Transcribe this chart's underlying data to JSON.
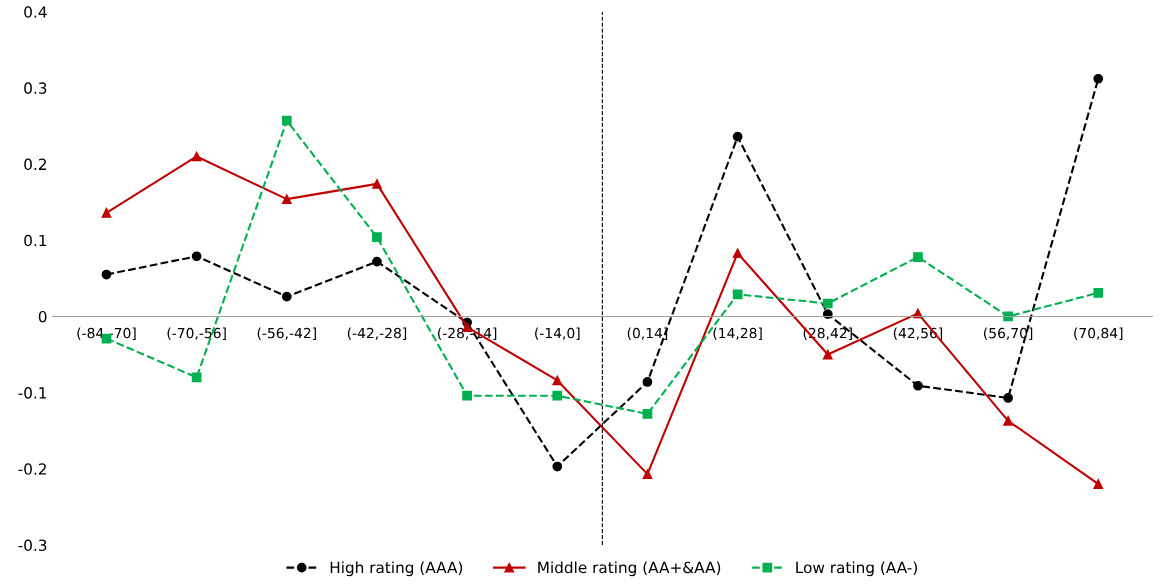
{
  "chart_data": {
    "type": "line",
    "categories": [
      "(-84,-70]",
      "(-70,-56]",
      "(-56,-42]",
      "(-42,-28]",
      "(-28,-14]",
      "(-14,0]",
      "(0,14]",
      "(14,28]",
      "(28,42]",
      "(42,56]",
      "(56,70]",
      "(70,84]"
    ],
    "series": [
      {
        "name": "High rating (AAA)",
        "color": "#000000",
        "marker": "circle",
        "line_style": "dashed",
        "values": [
          0.055,
          0.079,
          0.026,
          0.072,
          -0.008,
          -0.197,
          -0.086,
          0.236,
          0.003,
          -0.091,
          -0.107,
          0.312
        ]
      },
      {
        "name": "Middle rating (AA+&AA)",
        "color": "#c00000",
        "marker": "triangle",
        "line_style": "solid",
        "values": [
          0.136,
          0.21,
          0.154,
          0.174,
          -0.014,
          -0.084,
          -0.207,
          0.083,
          -0.05,
          0.004,
          -0.137,
          -0.22
        ]
      },
      {
        "name": "Low rating (AA-)",
        "color": "#00b050",
        "marker": "square",
        "line_style": "dashed",
        "values": [
          -0.029,
          -0.08,
          0.257,
          0.104,
          -0.104,
          -0.104,
          -0.128,
          0.029,
          0.017,
          0.078,
          0,
          0.031
        ]
      }
    ],
    "ylim": [
      -0.3,
      0.4
    ],
    "yticks": [
      -0.3,
      -0.2,
      -0.1,
      0,
      0.1,
      0.2,
      0.3,
      0.4
    ],
    "grid": false,
    "legend": "bottom"
  }
}
